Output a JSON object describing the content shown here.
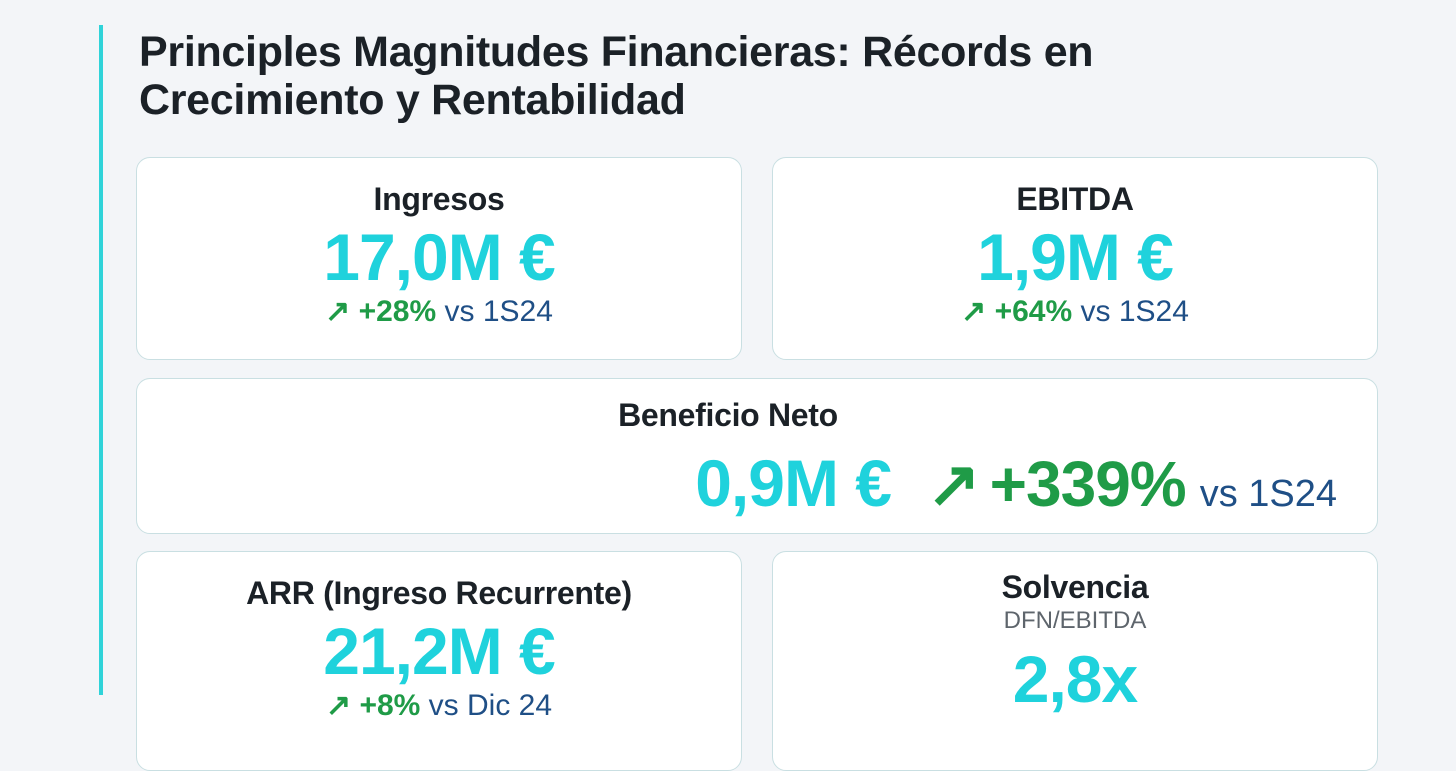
{
  "title": "Principles Magnitudes Financieras: Récords en Crecimiento y Rentabilidad",
  "colors": {
    "accent": "#2fd3d9",
    "value": "#1fd2dc",
    "positive": "#1f9b47",
    "comparison": "#1f4f86"
  },
  "cards": {
    "ingresos": {
      "label": "Ingresos",
      "value": "17,0M €",
      "arrow": "↗",
      "change": "+28%",
      "comparison": "vs 1S24"
    },
    "ebitda": {
      "label": "EBITDA",
      "value": "1,9M €",
      "arrow": "↗",
      "change": "+64%",
      "comparison": "vs 1S24"
    },
    "beneficio": {
      "label": "Beneficio Neto",
      "value": "0,9M €",
      "arrow": "↗",
      "change": "+339%",
      "comparison": "vs 1S24"
    },
    "arr": {
      "label": "ARR (Ingreso Recurrente)",
      "value": "21,2M €",
      "arrow": "↗",
      "change": "+8%",
      "comparison": "vs Dic 24"
    },
    "solvencia": {
      "label": "Solvencia",
      "sublabel": "DFN/EBITDA",
      "value": "2,8x"
    }
  }
}
